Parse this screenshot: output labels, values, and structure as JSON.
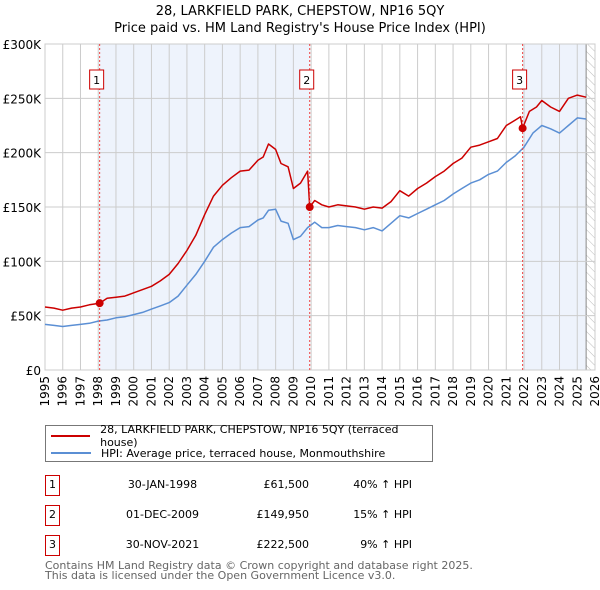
{
  "title_line1": "28, LARKFIELD PARK, CHEPSTOW, NP16 5QY",
  "title_line2": "Price paid vs. HM Land Registry's House Price Index (HPI)",
  "colors": {
    "property": "#cc0000",
    "hpi": "#5b8fd4",
    "shade": "#eef3fc",
    "grid": "#cccccc",
    "marker_line": "#ee4444"
  },
  "chart_data": {
    "type": "line",
    "title": "Price paid vs. HM Land Registry's House Price Index (HPI)",
    "xlabel": "",
    "ylabel": "",
    "xlim": [
      1995,
      2026
    ],
    "ylim": [
      0,
      300000
    ],
    "x_ticks": [
      "1995",
      "1996",
      "1997",
      "1998",
      "1999",
      "2000",
      "2001",
      "2002",
      "2003",
      "2004",
      "2005",
      "2006",
      "2007",
      "2008",
      "2009",
      "2010",
      "2011",
      "2012",
      "2013",
      "2014",
      "2015",
      "2016",
      "2017",
      "2018",
      "2019",
      "2020",
      "2021",
      "2022",
      "2023",
      "2024",
      "2025",
      "2026"
    ],
    "y_ticks": [
      {
        "value": 0,
        "label": "£0"
      },
      {
        "value": 50000,
        "label": "£50K"
      },
      {
        "value": 100000,
        "label": "£100K"
      },
      {
        "value": 150000,
        "label": "£150K"
      },
      {
        "value": 200000,
        "label": "£200K"
      },
      {
        "value": 250000,
        "label": "£250K"
      },
      {
        "value": 300000,
        "label": "£300K"
      }
    ],
    "grid": true,
    "series": [
      {
        "name": "28, LARKFIELD PARK, CHEPSTOW, NP16 5QY (terraced house)",
        "color": "#cc0000",
        "x": [
          1995,
          1995.5,
          1996,
          1996.5,
          1997,
          1997.5,
          1998.08,
          1998.5,
          1999,
          1999.5,
          2000,
          2000.5,
          2001,
          2001.5,
          2002,
          2002.5,
          2003,
          2003.5,
          2004,
          2004.5,
          2005,
          2005.5,
          2006,
          2006.5,
          2007,
          2007.3,
          2007.6,
          2008,
          2008.3,
          2008.7,
          2009,
          2009.4,
          2009.8,
          2009.92,
          2010.2,
          2010.6,
          2011,
          2011.5,
          2012,
          2012.5,
          2013,
          2013.5,
          2014,
          2014.5,
          2015,
          2015.5,
          2016,
          2016.5,
          2017,
          2017.5,
          2018,
          2018.5,
          2019,
          2019.5,
          2020,
          2020.5,
          2021,
          2021.5,
          2021.8,
          2021.92,
          2022.3,
          2022.7,
          2023,
          2023.5,
          2024,
          2024.5,
          2025,
          2025.5
        ],
        "y": [
          58000,
          57000,
          55000,
          57000,
          58000,
          60000,
          61500,
          66000,
          67000,
          68000,
          71000,
          74000,
          77000,
          82000,
          88000,
          98000,
          110000,
          124000,
          143000,
          160000,
          170000,
          177000,
          183000,
          184000,
          193000,
          196000,
          208000,
          203000,
          190000,
          187000,
          167000,
          172000,
          183000,
          149950,
          156000,
          152000,
          150000,
          152000,
          151000,
          150000,
          148000,
          150000,
          149000,
          155000,
          165000,
          160000,
          167000,
          172000,
          178000,
          183000,
          190000,
          195000,
          205000,
          207000,
          210000,
          213000,
          225000,
          230000,
          233000,
          222500,
          238000,
          242000,
          248000,
          242000,
          238000,
          250000,
          253000,
          251000
        ]
      },
      {
        "name": "HPI: Average price, terraced house, Monmouthshire",
        "color": "#5b8fd4",
        "x": [
          1995,
          1995.5,
          1996,
          1996.5,
          1997,
          1997.5,
          1998,
          1998.5,
          1999,
          1999.5,
          2000,
          2000.5,
          2001,
          2001.5,
          2002,
          2002.5,
          2003,
          2003.5,
          2004,
          2004.5,
          2005,
          2005.5,
          2006,
          2006.5,
          2007,
          2007.3,
          2007.6,
          2008,
          2008.3,
          2008.7,
          2009,
          2009.4,
          2009.8,
          2010.2,
          2010.6,
          2011,
          2011.5,
          2012,
          2012.5,
          2013,
          2013.5,
          2014,
          2014.5,
          2015,
          2015.5,
          2016,
          2016.5,
          2017,
          2017.5,
          2018,
          2018.5,
          2019,
          2019.5,
          2020,
          2020.5,
          2021,
          2021.5,
          2022,
          2022.5,
          2023,
          2023.5,
          2024,
          2024.5,
          2025,
          2025.5
        ],
        "y": [
          42000,
          41000,
          40000,
          41000,
          42000,
          43000,
          45000,
          46000,
          48000,
          49000,
          51000,
          53000,
          56000,
          59000,
          62000,
          68000,
          78000,
          88000,
          100000,
          113000,
          120000,
          126000,
          131000,
          132000,
          138000,
          140000,
          147000,
          148000,
          137000,
          135000,
          120000,
          123000,
          131000,
          136000,
          131000,
          131000,
          133000,
          132000,
          131000,
          129000,
          131000,
          128000,
          135000,
          142000,
          140000,
          144000,
          148000,
          152000,
          156000,
          162000,
          167000,
          172000,
          175000,
          180000,
          183000,
          191000,
          197000,
          205000,
          218000,
          225000,
          222000,
          218000,
          225000,
          232000,
          231000
        ]
      }
    ],
    "sales": [
      {
        "id": "1",
        "x": 1998.08,
        "value": 61500
      },
      {
        "id": "2",
        "x": 2009.92,
        "value": 149950
      },
      {
        "id": "3",
        "x": 2021.92,
        "value": 222500
      }
    ],
    "shaded_ranges": [
      [
        1998.08,
        2009.92
      ],
      [
        2021.92,
        2025.5
      ]
    ],
    "hatched_from": 2025.5
  },
  "legend": [
    {
      "label": "28, LARKFIELD PARK, CHEPSTOW, NP16 5QY (terraced house)"
    },
    {
      "label": "HPI: Average price, terraced house, Monmouthshire"
    }
  ],
  "transactions": [
    {
      "id": "1",
      "date": "30-JAN-1998",
      "price": "£61,500",
      "hpi": "40% ↑ HPI"
    },
    {
      "id": "2",
      "date": "01-DEC-2009",
      "price": "£149,950",
      "hpi": "15% ↑ HPI"
    },
    {
      "id": "3",
      "date": "30-NOV-2021",
      "price": "£222,500",
      "hpi": "9% ↑ HPI"
    }
  ],
  "footer": {
    "line1": "Contains HM Land Registry data © Crown copyright and database right 2025.",
    "line2": "This data is licensed under the Open Government Licence v3.0."
  }
}
